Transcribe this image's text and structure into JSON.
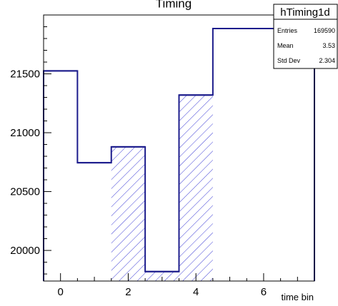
{
  "chart_data": {
    "type": "histogram",
    "title": "Timing",
    "xlabel": "time bin",
    "ylabel": "",
    "xlim": [
      -0.5,
      7.5
    ],
    "ylim": [
      19740,
      22000
    ],
    "bin_edges": [
      -0.5,
      0.5,
      1.5,
      2.5,
      3.5,
      4.5,
      7.5
    ],
    "values": [
      21525,
      20745,
      20880,
      19820,
      21320,
      21885
    ],
    "hatched_bins": [
      2,
      3,
      4
    ],
    "line_color": "#1c1c8c",
    "hatch_color": "#3f3fd6",
    "x_ticks": [
      0,
      2,
      4,
      6
    ],
    "x_tick_labels": [
      "0",
      "2",
      "4",
      "6"
    ],
    "y_ticks": [
      20000,
      20500,
      21000,
      21500
    ],
    "y_tick_labels": [
      "20000",
      "20500",
      "21000",
      "21500"
    ],
    "grid": false,
    "stats": {
      "name": "hTiming1d",
      "rows": [
        {
          "label": "Entries",
          "value": "169590"
        },
        {
          "label": "Mean",
          "value": "3.53"
        },
        {
          "label": "Std Dev",
          "value": "2.304"
        }
      ]
    }
  }
}
